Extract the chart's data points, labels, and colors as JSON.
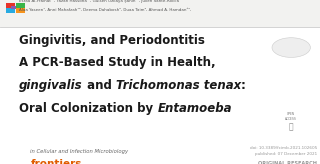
{
  "bg_color": "#ffffff",
  "header_bg": "#f7f7f7",
  "header_line_color": "#cccccc",
  "journal_name": "frontiers",
  "journal_sub": "in Cellular and Infection Microbiology",
  "journal_name_color": "#e05c00",
  "journal_sub_color": "#666666",
  "top_right_line1": "ORIGINAL RESEARCH",
  "top_right_line2": "published: 07 December 2021",
  "top_right_line3": "doi: 10.3389/fcimb.2021.102605",
  "top_right_color": "#999999",
  "title_color": "#1a1a1a",
  "authors_color": "#555555",
  "icon_colors": [
    "#e63329",
    "#f7941d",
    "#39b54a",
    "#27aae1",
    "#8b5bb1"
  ],
  "figw": 3.2,
  "figh": 1.64
}
